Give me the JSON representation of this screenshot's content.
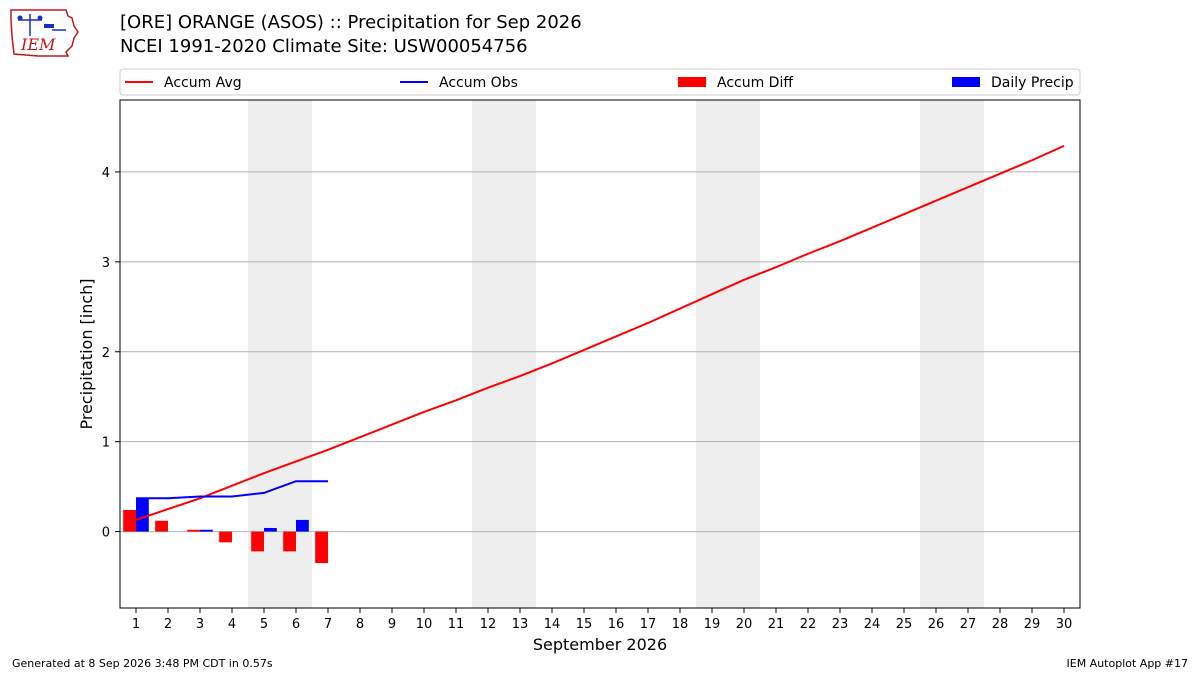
{
  "header": {
    "title_line1": "[ORE] ORANGE (ASOS) :: Precipitation for Sep 2026",
    "title_line2": "NCEI 1991-2020 Climate Site: USW00054756",
    "logo_text": "IEM"
  },
  "footer": {
    "generated": "Generated at 8 Sep 2026 3:48 PM CDT in 0.57s",
    "app": "IEM Autoplot App #17"
  },
  "colors": {
    "avg": "#ff0000",
    "obs": "#0000ff",
    "diff": "#ff0000",
    "daily": "#0000ff",
    "weekend_band": "#eeeeee",
    "grid": "#b0b0b0"
  },
  "chart_data": {
    "type": "line",
    "xlabel": "September 2026",
    "ylabel": "Precipitation [inch]",
    "xlim": [
      0.5,
      30.5
    ],
    "ylim": [
      -0.85,
      4.8
    ],
    "yticks": [
      0,
      1,
      2,
      3,
      4
    ],
    "x": [
      1,
      2,
      3,
      4,
      5,
      6,
      7,
      8,
      9,
      10,
      11,
      12,
      13,
      14,
      15,
      16,
      17,
      18,
      19,
      20,
      21,
      22,
      23,
      24,
      25,
      26,
      27,
      28,
      29,
      30
    ],
    "weekend_days": [
      [
        5,
        6
      ],
      [
        12,
        13
      ],
      [
        19,
        20
      ],
      [
        26,
        27
      ]
    ],
    "legend": {
      "placement": "top",
      "entries": [
        {
          "label": "Accum Avg",
          "kind": "line",
          "series": "avg"
        },
        {
          "label": "Accum Obs",
          "kind": "line",
          "series": "obs"
        },
        {
          "label": "Accum Diff",
          "kind": "bar",
          "series": "diff"
        },
        {
          "label": "Daily Precip",
          "kind": "bar",
          "series": "daily"
        }
      ]
    },
    "series": [
      {
        "name": "Accum Avg",
        "id": "avg",
        "type": "line",
        "x": [
          1,
          2,
          3,
          4,
          5,
          6,
          7,
          8,
          9,
          10,
          11,
          12,
          13,
          14,
          15,
          16,
          17,
          18,
          19,
          20,
          21,
          22,
          23,
          24,
          25,
          26,
          27,
          28,
          29,
          30
        ],
        "values": [
          0.13,
          0.25,
          0.37,
          0.51,
          0.65,
          0.78,
          0.91,
          1.05,
          1.19,
          1.33,
          1.46,
          1.6,
          1.73,
          1.87,
          2.02,
          2.17,
          2.32,
          2.48,
          2.64,
          2.8,
          2.94,
          3.09,
          3.23,
          3.38,
          3.53,
          3.68,
          3.83,
          3.98,
          4.13,
          4.29
        ]
      },
      {
        "name": "Accum Obs",
        "id": "obs",
        "type": "line",
        "x": [
          1,
          2,
          3,
          4,
          5,
          6,
          7
        ],
        "values": [
          0.37,
          0.37,
          0.39,
          0.39,
          0.43,
          0.56,
          0.56
        ]
      },
      {
        "name": "Accum Diff",
        "id": "diff",
        "type": "bar",
        "x": [
          1,
          2,
          3,
          4,
          5,
          6,
          7
        ],
        "values": [
          0.24,
          0.12,
          0.02,
          -0.12,
          -0.22,
          -0.22,
          -0.35
        ]
      },
      {
        "name": "Daily Precip",
        "id": "daily",
        "type": "bar",
        "x": [
          1,
          2,
          3,
          4,
          5,
          6,
          7
        ],
        "values": [
          0.37,
          0.0,
          0.02,
          0.0,
          0.04,
          0.13,
          0.0
        ]
      }
    ]
  }
}
